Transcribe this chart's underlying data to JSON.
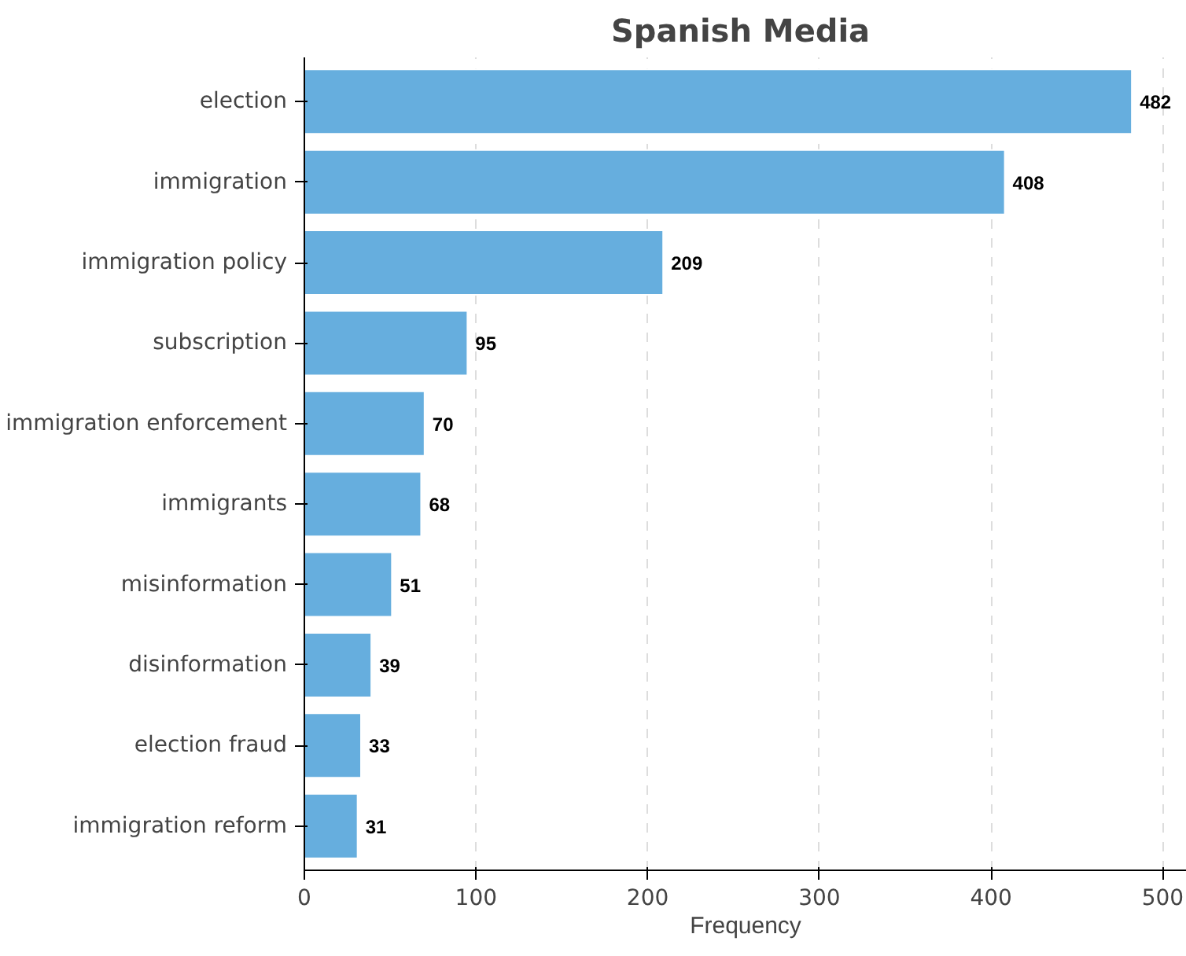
{
  "chart_data": {
    "type": "bar",
    "orientation": "horizontal",
    "title": "Spanish Media",
    "xlabel": "Frequency",
    "categories": [
      "election",
      "immigration",
      "immigration policy",
      "subscription",
      "immigration enforcement",
      "immigrants",
      "misinformation",
      "disinformation",
      "election fraud",
      "immigration reform"
    ],
    "values": [
      482,
      408,
      209,
      95,
      70,
      68,
      51,
      39,
      33,
      31
    ],
    "color": "#66aede",
    "xlim": [
      0,
      514
    ],
    "xticks": [
      0,
      100,
      200,
      300,
      400,
      500
    ],
    "grid": "x",
    "data_labels": true
  }
}
